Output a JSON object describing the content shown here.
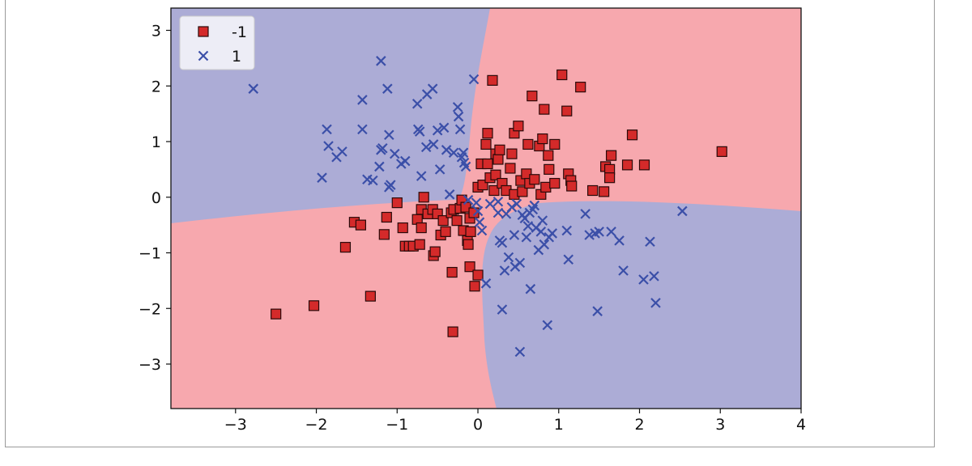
{
  "chart_data": {
    "type": "scatter",
    "title": "",
    "xlabel": "",
    "ylabel": "",
    "xlim": [
      -3.8,
      4.0
    ],
    "ylim": [
      -3.8,
      3.4
    ],
    "xticks": [
      -3,
      -2,
      -1,
      0,
      1,
      2,
      3,
      4
    ],
    "yticks": [
      -3,
      -2,
      -1,
      0,
      1,
      2,
      3
    ],
    "xtick_labels": [
      "−3",
      "−2",
      "−1",
      "0",
      "1",
      "2",
      "3",
      "4"
    ],
    "ytick_labels": [
      "−3",
      "−2",
      "−1",
      "0",
      "1",
      "2",
      "3"
    ],
    "grid": false,
    "legend_position": "upper-left",
    "background": "decision regions (XOR-like)",
    "region_colors": {
      "-1": "#f7a8ae",
      "1": "#acacd6"
    },
    "series": [
      {
        "name": "-1",
        "marker": "square",
        "color": "#d42a2a",
        "edgecolor": "#2a0a0a",
        "points": [
          [
            -2.5,
            -2.1
          ],
          [
            -2.03,
            -1.95
          ],
          [
            -1.33,
            -1.78
          ],
          [
            -0.31,
            -2.42
          ],
          [
            -1.64,
            -0.9
          ],
          [
            -1.53,
            -0.45
          ],
          [
            -1.45,
            -0.5
          ],
          [
            -1.16,
            -0.67
          ],
          [
            -1.13,
            -0.36
          ],
          [
            -1.0,
            -0.1
          ],
          [
            -0.93,
            -0.55
          ],
          [
            -0.9,
            -0.88
          ],
          [
            -0.85,
            -0.88
          ],
          [
            -0.8,
            -0.88
          ],
          [
            -0.75,
            -0.4
          ],
          [
            -0.72,
            -0.85
          ],
          [
            -0.7,
            -0.55
          ],
          [
            -0.7,
            -0.22
          ],
          [
            -0.67,
            0.0
          ],
          [
            -0.62,
            -0.3
          ],
          [
            -0.56,
            -0.22
          ],
          [
            -0.55,
            -1.05
          ],
          [
            -0.53,
            -0.98
          ],
          [
            -0.5,
            -0.3
          ],
          [
            -0.46,
            -0.68
          ],
          [
            -0.43,
            -0.42
          ],
          [
            -0.4,
            -0.62
          ],
          [
            -0.33,
            -0.28
          ],
          [
            -0.32,
            -1.35
          ],
          [
            -0.3,
            -0.22
          ],
          [
            -0.26,
            -0.42
          ],
          [
            -0.22,
            -0.2
          ],
          [
            -0.2,
            -0.05
          ],
          [
            -0.18,
            -0.6
          ],
          [
            -0.15,
            -0.18
          ],
          [
            -0.13,
            -0.78
          ],
          [
            -0.12,
            -0.85
          ],
          [
            -0.1,
            -1.25
          ],
          [
            -0.1,
            -0.38
          ],
          [
            -0.09,
            -0.62
          ],
          [
            -0.05,
            -0.28
          ],
          [
            -0.04,
            -1.6
          ],
          [
            0.0,
            -1.4
          ],
          [
            0.0,
            0.18
          ],
          [
            0.04,
            0.6
          ],
          [
            0.06,
            0.22
          ],
          [
            0.1,
            0.95
          ],
          [
            0.12,
            1.15
          ],
          [
            0.12,
            0.6
          ],
          [
            0.15,
            0.35
          ],
          [
            0.18,
            2.1
          ],
          [
            0.2,
            0.12
          ],
          [
            0.22,
            0.78
          ],
          [
            0.22,
            0.4
          ],
          [
            0.25,
            0.68
          ],
          [
            0.27,
            0.85
          ],
          [
            0.3,
            0.25
          ],
          [
            0.35,
            0.12
          ],
          [
            0.4,
            0.52
          ],
          [
            0.42,
            0.78
          ],
          [
            0.45,
            1.15
          ],
          [
            0.45,
            0.05
          ],
          [
            0.5,
            1.28
          ],
          [
            0.53,
            0.3
          ],
          [
            0.55,
            0.1
          ],
          [
            0.6,
            0.42
          ],
          [
            0.62,
            0.95
          ],
          [
            0.64,
            0.25
          ],
          [
            0.67,
            1.82
          ],
          [
            0.7,
            0.32
          ],
          [
            0.76,
            0.92
          ],
          [
            0.78,
            0.05
          ],
          [
            0.8,
            1.05
          ],
          [
            0.82,
            1.58
          ],
          [
            0.84,
            0.18
          ],
          [
            0.87,
            0.75
          ],
          [
            0.88,
            0.5
          ],
          [
            0.95,
            0.95
          ],
          [
            0.95,
            0.25
          ],
          [
            1.04,
            2.2
          ],
          [
            1.1,
            1.55
          ],
          [
            1.12,
            0.42
          ],
          [
            1.15,
            0.3
          ],
          [
            1.16,
            0.2
          ],
          [
            1.27,
            1.98
          ],
          [
            1.42,
            0.12
          ],
          [
            1.56,
            0.1
          ],
          [
            1.58,
            0.55
          ],
          [
            1.63,
            0.5
          ],
          [
            1.63,
            0.35
          ],
          [
            1.65,
            0.75
          ],
          [
            1.85,
            0.58
          ],
          [
            1.91,
            1.12
          ],
          [
            2.06,
            0.58
          ],
          [
            3.02,
            0.82
          ]
        ]
      },
      {
        "name": "1",
        "marker": "x",
        "color": "#3b4fa8",
        "points": [
          [
            -2.78,
            1.95
          ],
          [
            -1.93,
            0.35
          ],
          [
            -1.87,
            1.22
          ],
          [
            -1.85,
            0.92
          ],
          [
            -1.75,
            0.72
          ],
          [
            -1.68,
            0.82
          ],
          [
            -1.43,
            1.22
          ],
          [
            -1.43,
            1.75
          ],
          [
            -1.37,
            0.32
          ],
          [
            -1.3,
            0.3
          ],
          [
            -1.22,
            0.55
          ],
          [
            -1.2,
            0.85
          ],
          [
            -1.18,
            0.88
          ],
          [
            -1.2,
            2.45
          ],
          [
            -1.12,
            1.95
          ],
          [
            -1.1,
            0.18
          ],
          [
            -1.1,
            1.12
          ],
          [
            -1.08,
            0.22
          ],
          [
            -1.03,
            0.78
          ],
          [
            -0.95,
            0.6
          ],
          [
            -0.9,
            0.65
          ],
          [
            -0.75,
            1.68
          ],
          [
            -0.74,
            1.22
          ],
          [
            -0.72,
            1.18
          ],
          [
            -0.7,
            0.38
          ],
          [
            -0.64,
            0.9
          ],
          [
            -0.63,
            1.85
          ],
          [
            -0.56,
            1.95
          ],
          [
            -0.55,
            0.95
          ],
          [
            -0.5,
            1.2
          ],
          [
            -0.47,
            0.5
          ],
          [
            -0.42,
            1.25
          ],
          [
            -0.39,
            0.85
          ],
          [
            -0.35,
            0.05
          ],
          [
            -0.3,
            0.8
          ],
          [
            -0.25,
            1.62
          ],
          [
            -0.24,
            1.45
          ],
          [
            -0.22,
            1.22
          ],
          [
            -0.2,
            0.72
          ],
          [
            -0.18,
            0.8
          ],
          [
            -0.17,
            0.62
          ],
          [
            -0.15,
            0.55
          ],
          [
            -0.12,
            -0.05
          ],
          [
            -0.05,
            2.12
          ],
          [
            -0.02,
            -0.1
          ],
          [
            0.0,
            -0.25
          ],
          [
            0.02,
            -0.45
          ],
          [
            0.05,
            -0.6
          ],
          [
            0.1,
            -1.55
          ],
          [
            0.15,
            -0.12
          ],
          [
            0.25,
            -0.08
          ],
          [
            0.25,
            -0.28
          ],
          [
            0.27,
            -0.78
          ],
          [
            0.3,
            -2.02
          ],
          [
            0.3,
            -0.82
          ],
          [
            0.33,
            -1.32
          ],
          [
            0.35,
            -0.3
          ],
          [
            0.38,
            -1.08
          ],
          [
            0.42,
            -0.18
          ],
          [
            0.45,
            -0.68
          ],
          [
            0.46,
            -1.25
          ],
          [
            0.48,
            -0.12
          ],
          [
            0.52,
            -2.78
          ],
          [
            0.52,
            -1.18
          ],
          [
            0.55,
            -0.32
          ],
          [
            0.58,
            -0.38
          ],
          [
            0.6,
            -0.72
          ],
          [
            0.62,
            -0.52
          ],
          [
            0.64,
            -0.28
          ],
          [
            0.65,
            -1.65
          ],
          [
            0.68,
            -0.22
          ],
          [
            0.7,
            -0.15
          ],
          [
            0.72,
            -0.55
          ],
          [
            0.75,
            -0.95
          ],
          [
            0.78,
            -0.62
          ],
          [
            0.8,
            -0.42
          ],
          [
            0.82,
            -0.85
          ],
          [
            0.86,
            -2.3
          ],
          [
            0.88,
            -0.72
          ],
          [
            0.92,
            -0.65
          ],
          [
            1.1,
            -0.6
          ],
          [
            1.12,
            -1.12
          ],
          [
            1.33,
            -0.3
          ],
          [
            1.38,
            -0.68
          ],
          [
            1.45,
            -0.65
          ],
          [
            1.48,
            -2.05
          ],
          [
            1.5,
            -0.62
          ],
          [
            1.65,
            -0.62
          ],
          [
            1.75,
            -0.78
          ],
          [
            1.8,
            -1.32
          ],
          [
            2.05,
            -1.48
          ],
          [
            2.13,
            -0.8
          ],
          [
            2.18,
            -1.42
          ],
          [
            2.2,
            -1.9
          ],
          [
            2.53,
            -0.25
          ]
        ]
      }
    ]
  }
}
